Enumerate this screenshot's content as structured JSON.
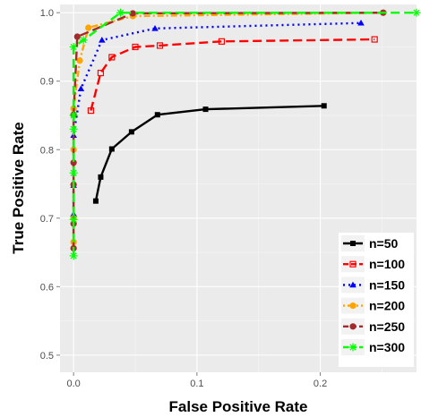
{
  "chart_data": {
    "type": "line",
    "xlabel": "False Positive Rate",
    "ylabel": "True Positive Rate",
    "xlim": [
      -0.011,
      0.278
    ],
    "ylim": [
      0.475,
      1.012
    ],
    "x_ticks": [
      0.0,
      0.1,
      0.2
    ],
    "x_tick_labels": [
      "0.0",
      "0.1",
      "0.2"
    ],
    "y_ticks": [
      0.5,
      0.6,
      0.7,
      0.8,
      0.9,
      1.0
    ],
    "y_tick_labels": [
      "0.5",
      "0.6",
      "0.7",
      "0.8",
      "0.9",
      "1.0"
    ],
    "grid": true,
    "background": "#ebebeb",
    "legend_position": "bottom-right",
    "series": [
      {
        "name": "n=50",
        "color": "#000000",
        "dash": "solid",
        "marker": "square-filled",
        "points": [
          [
            0.018,
            0.725
          ],
          [
            0.022,
            0.76
          ],
          [
            0.031,
            0.801
          ],
          [
            0.047,
            0.826
          ],
          [
            0.068,
            0.851
          ],
          [
            0.107,
            0.859
          ],
          [
            0.203,
            0.864
          ]
        ]
      },
      {
        "name": "n=100",
        "color": "#ff0000",
        "dash": "long-dash",
        "marker": "square-open",
        "points": [
          [
            0.014,
            0.857
          ],
          [
            0.022,
            0.912
          ],
          [
            0.031,
            0.935
          ],
          [
            0.05,
            0.95
          ],
          [
            0.07,
            0.952
          ],
          [
            0.12,
            0.958
          ],
          [
            0.244,
            0.961
          ]
        ]
      },
      {
        "name": "n=150",
        "color": "#0000ff",
        "dash": "dotted",
        "marker": "triangle-filled",
        "points": [
          [
            0.0,
            0.706
          ],
          [
            0.0,
            0.748
          ],
          [
            0.0,
            0.821
          ],
          [
            0.006,
            0.889
          ],
          [
            0.023,
            0.96
          ],
          [
            0.066,
            0.977
          ],
          [
            0.233,
            0.985
          ]
        ]
      },
      {
        "name": "n=200",
        "color": "#ffa500",
        "dash": "dot-dash",
        "marker": "circle-filled",
        "points": [
          [
            0.0,
            0.665
          ],
          [
            0.0,
            0.7
          ],
          [
            0.0,
            0.8
          ],
          [
            0.0,
            0.86
          ],
          [
            0.005,
            0.93
          ],
          [
            0.012,
            0.978
          ],
          [
            0.048,
            0.995
          ],
          [
            0.251,
            1.0
          ]
        ]
      },
      {
        "name": "n=250",
        "color": "#a52a2a",
        "dash": "long-dash",
        "marker": "circle-filled",
        "points": [
          [
            0.0,
            0.656
          ],
          [
            0.0,
            0.692
          ],
          [
            0.0,
            0.749
          ],
          [
            0.0,
            0.781
          ],
          [
            0.0,
            0.851
          ],
          [
            0.003,
            0.965
          ],
          [
            0.048,
            0.999
          ],
          [
            0.251,
            1.0
          ]
        ]
      },
      {
        "name": "n=300",
        "color": "#00ff00",
        "dash": "long-dash",
        "marker": "star",
        "points": [
          [
            0.0,
            0.645
          ],
          [
            0.0,
            0.698
          ],
          [
            0.0,
            0.766
          ],
          [
            0.0,
            0.83
          ],
          [
            0.0,
            0.85
          ],
          [
            0.0,
            0.95
          ],
          [
            0.008,
            0.96
          ],
          [
            0.038,
            1.0
          ],
          [
            0.278,
            1.0
          ]
        ]
      }
    ]
  }
}
